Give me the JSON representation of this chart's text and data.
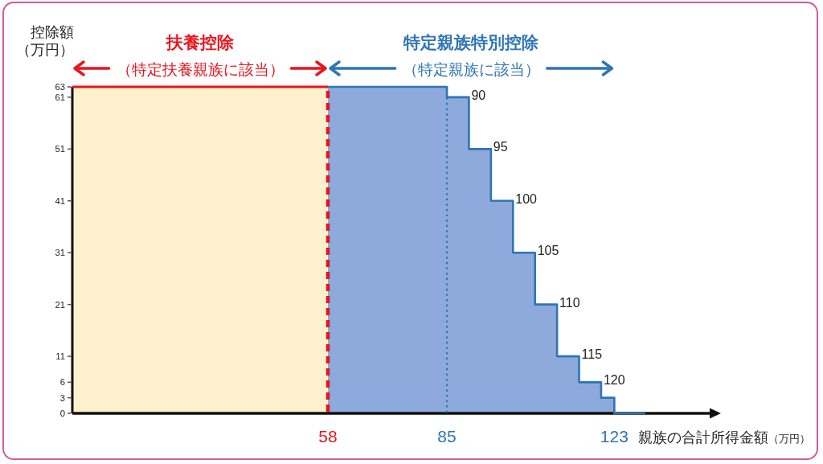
{
  "chart_data": {
    "type": "step",
    "xlabel": "親族の合計所得金額（万円）",
    "ylabel": "控除額（万円）",
    "xlim": [
      0,
      145
    ],
    "ylim": [
      0,
      63
    ],
    "xticks": [
      58,
      85,
      123
    ],
    "yticks": [
      0,
      3,
      6,
      11,
      21,
      31,
      41,
      51,
      61,
      63
    ],
    "series": [
      {
        "type": "histogram",
        "bins": [
          0,
          58,
          85,
          90,
          95,
          100,
          105,
          110,
          115,
          120,
          123
        ],
        "values": [
          63,
          63,
          61,
          51,
          41,
          31,
          21,
          11,
          6,
          3
        ],
        "colors": [
          "#fdf0cc",
          "#8eaadc",
          "#8eaadc",
          "#8eaadc",
          "#8eaadc",
          "#8eaadc",
          "#8eaadc",
          "#8eaadc",
          "#8eaadc",
          "#8eaadc"
        ]
      },
      {
        "type": "line",
        "name": "扶養控除",
        "color": "#e8141e",
        "x": [
          0,
          58
        ],
        "values": [
          63,
          63
        ]
      },
      {
        "name": "特定親族特別控除",
        "color": "#2e75b6",
        "x": [
          58,
          85,
          90,
          95,
          100,
          105,
          110,
          115,
          120,
          123,
          130
        ],
        "values": [
          63,
          61,
          51,
          41,
          31,
          21,
          11,
          6,
          3,
          0,
          0
        ]
      }
    ],
    "ref_lines": [
      {
        "axis": "x",
        "value": 58,
        "color": "#e8141e",
        "line_style": "dashed"
      },
      {
        "axis": "x",
        "value": 85,
        "color": "#2e75b6",
        "line_style": "dotted"
      }
    ],
    "annotations": [
      "（特定扶養親族に該当）",
      "（特定親族に該当）",
      {
        "text": "90",
        "x": 90,
        "y": 61
      },
      {
        "text": "95",
        "x": 95,
        "y": 51
      },
      {
        "text": "100",
        "x": 100,
        "y": 41
      },
      {
        "text": "105",
        "x": 105,
        "y": 31
      },
      {
        "text": "110",
        "x": 110,
        "y": 21
      },
      {
        "text": "115",
        "x": 115,
        "y": 11
      },
      {
        "text": "120",
        "x": 120,
        "y": 6
      }
    ]
  }
}
